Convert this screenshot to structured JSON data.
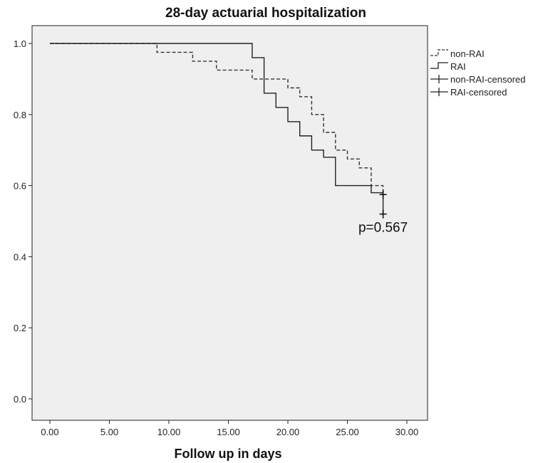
{
  "chart_data": {
    "type": "line",
    "subtype": "kaplan-meier step",
    "title": "28-day actuarial hospitalization",
    "xlabel": "Follow up in days",
    "ylabel": "",
    "xlim": [
      0,
      30
    ],
    "ylim": [
      0,
      1
    ],
    "x_ticks": [
      "0.00",
      "5.00",
      "10.00",
      "15.00",
      "20.00",
      "25.00",
      "30.00"
    ],
    "y_ticks": [
      "0.0",
      "0.2",
      "0.4",
      "0.6",
      "0.8",
      "1.0"
    ],
    "x_tick_values": [
      0,
      5,
      10,
      15,
      20,
      25,
      30
    ],
    "y_tick_values": [
      0,
      0.2,
      0.4,
      0.6,
      0.8,
      1.0
    ],
    "grid": false,
    "legend_position": "right",
    "plot_background": "#efefef",
    "series": [
      {
        "name": "non-RAI",
        "style": "dashed",
        "color": "#333333",
        "points": [
          [
            0,
            1.0
          ],
          [
            9,
            0.975
          ],
          [
            12,
            0.95
          ],
          [
            14,
            0.925
          ],
          [
            17,
            0.9
          ],
          [
            20,
            0.875
          ],
          [
            21,
            0.85
          ],
          [
            22,
            0.8
          ],
          [
            23,
            0.75
          ],
          [
            24,
            0.7
          ],
          [
            25,
            0.675
          ],
          [
            26,
            0.65
          ],
          [
            27,
            0.6
          ],
          [
            28,
            0.575
          ]
        ]
      },
      {
        "name": "RAI",
        "style": "solid",
        "color": "#222222",
        "points": [
          [
            0,
            1.0
          ],
          [
            17,
            0.96
          ],
          [
            18,
            0.86
          ],
          [
            19,
            0.82
          ],
          [
            20,
            0.78
          ],
          [
            21,
            0.74
          ],
          [
            22,
            0.7
          ],
          [
            23,
            0.68
          ],
          [
            24,
            0.6
          ],
          [
            27,
            0.58
          ],
          [
            28,
            0.52
          ]
        ]
      }
    ],
    "censored": [
      {
        "name": "non-RAI-censored",
        "x": 28,
        "y": 0.575
      },
      {
        "name": "RAI-censored",
        "x": 28,
        "y": 0.52
      }
    ],
    "legend": [
      "non-RAI",
      "RAI",
      "non-RAI-censored",
      "RAI-censored"
    ],
    "annotation": {
      "text": "p=0.567",
      "x": 28,
      "y": 0.47
    }
  }
}
